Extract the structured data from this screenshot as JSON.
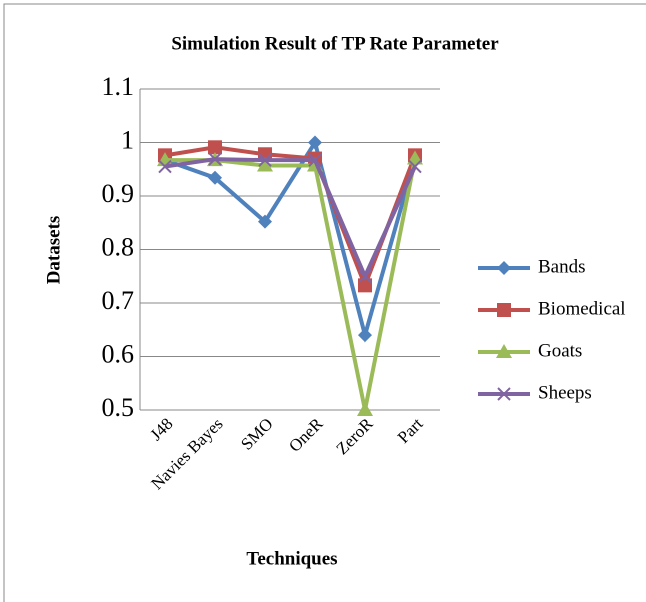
{
  "chart_data": {
    "type": "line",
    "title": "Simulation Result of TP Rate Parameter",
    "x_label": "Techniques",
    "y_label": "Datasets",
    "categories": [
      "J48",
      "Navies Bayes",
      "SMO",
      "OneR",
      "ZeroR",
      "Part"
    ],
    "series": [
      {
        "name": "Bands",
        "color": "#4f81bd",
        "values": [
          0.967,
          0.934,
          0.852,
          1.0,
          0.64,
          0.97
        ]
      },
      {
        "name": "Biomedical",
        "color": "#c0504d",
        "values": [
          0.976,
          0.991,
          0.978,
          0.97,
          0.733,
          0.976
        ]
      },
      {
        "name": "Goats",
        "color": "#9bbb59",
        "values": [
          0.967,
          0.967,
          0.957,
          0.957,
          0.5,
          0.97
        ]
      },
      {
        "name": "Sheeps",
        "color": "#8064a2",
        "values": [
          0.955,
          0.969,
          0.967,
          0.967,
          0.75,
          0.955
        ]
      }
    ],
    "ylim": [
      0.5,
      1.1
    ],
    "yticks": [
      0.5,
      0.6,
      0.7,
      0.8,
      0.9,
      1,
      1.1
    ],
    "grid": true,
    "legend": "right"
  }
}
